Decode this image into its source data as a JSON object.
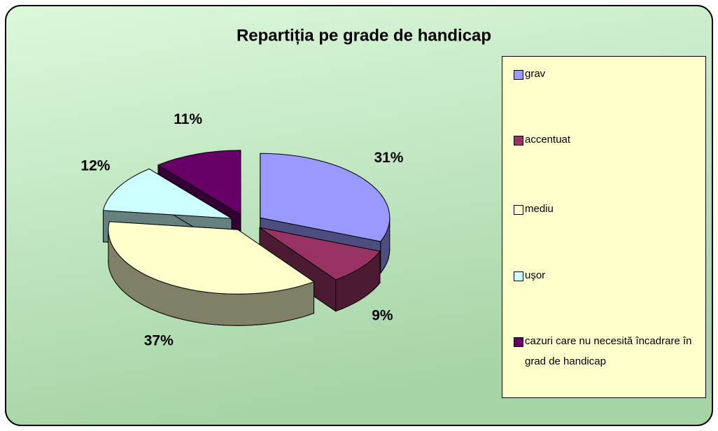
{
  "chart_data": {
    "type": "pie",
    "title": "Repartiția pe grade de handicap",
    "categories": [
      "grav",
      "accentuat",
      "mediu",
      "uşor",
      "cazuri care nu necesită încadrare în grad de handicap"
    ],
    "values": [
      31,
      9,
      37,
      12,
      11
    ],
    "value_labels": [
      "31%",
      "9%",
      "37%",
      "12%",
      "11%"
    ],
    "colors": [
      "#9999ff",
      "#993366",
      "#ffffcc",
      "#ccffff",
      "#660066"
    ]
  }
}
